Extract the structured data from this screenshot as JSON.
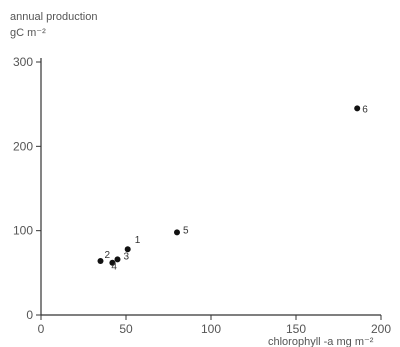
{
  "chart_data": {
    "type": "scatter",
    "title": "",
    "ylabel_line1": "annual production",
    "ylabel_line2": "gC m⁻²",
    "xlabel": "chlorophyll -a mg m⁻²",
    "xlim": [
      0,
      200
    ],
    "ylim": [
      0,
      300
    ],
    "x_ticks": [
      0,
      50,
      100,
      150,
      200
    ],
    "y_ticks": [
      0,
      100,
      200,
      300
    ],
    "grid": false,
    "points": [
      {
        "label": "1",
        "x": 51,
        "y": 78
      },
      {
        "label": "2",
        "x": 35,
        "y": 64
      },
      {
        "label": "3",
        "x": 45,
        "y": 66
      },
      {
        "label": "4",
        "x": 42,
        "y": 62
      },
      {
        "label": "5",
        "x": 80,
        "y": 98
      },
      {
        "label": "6",
        "x": 186,
        "y": 245
      }
    ]
  }
}
